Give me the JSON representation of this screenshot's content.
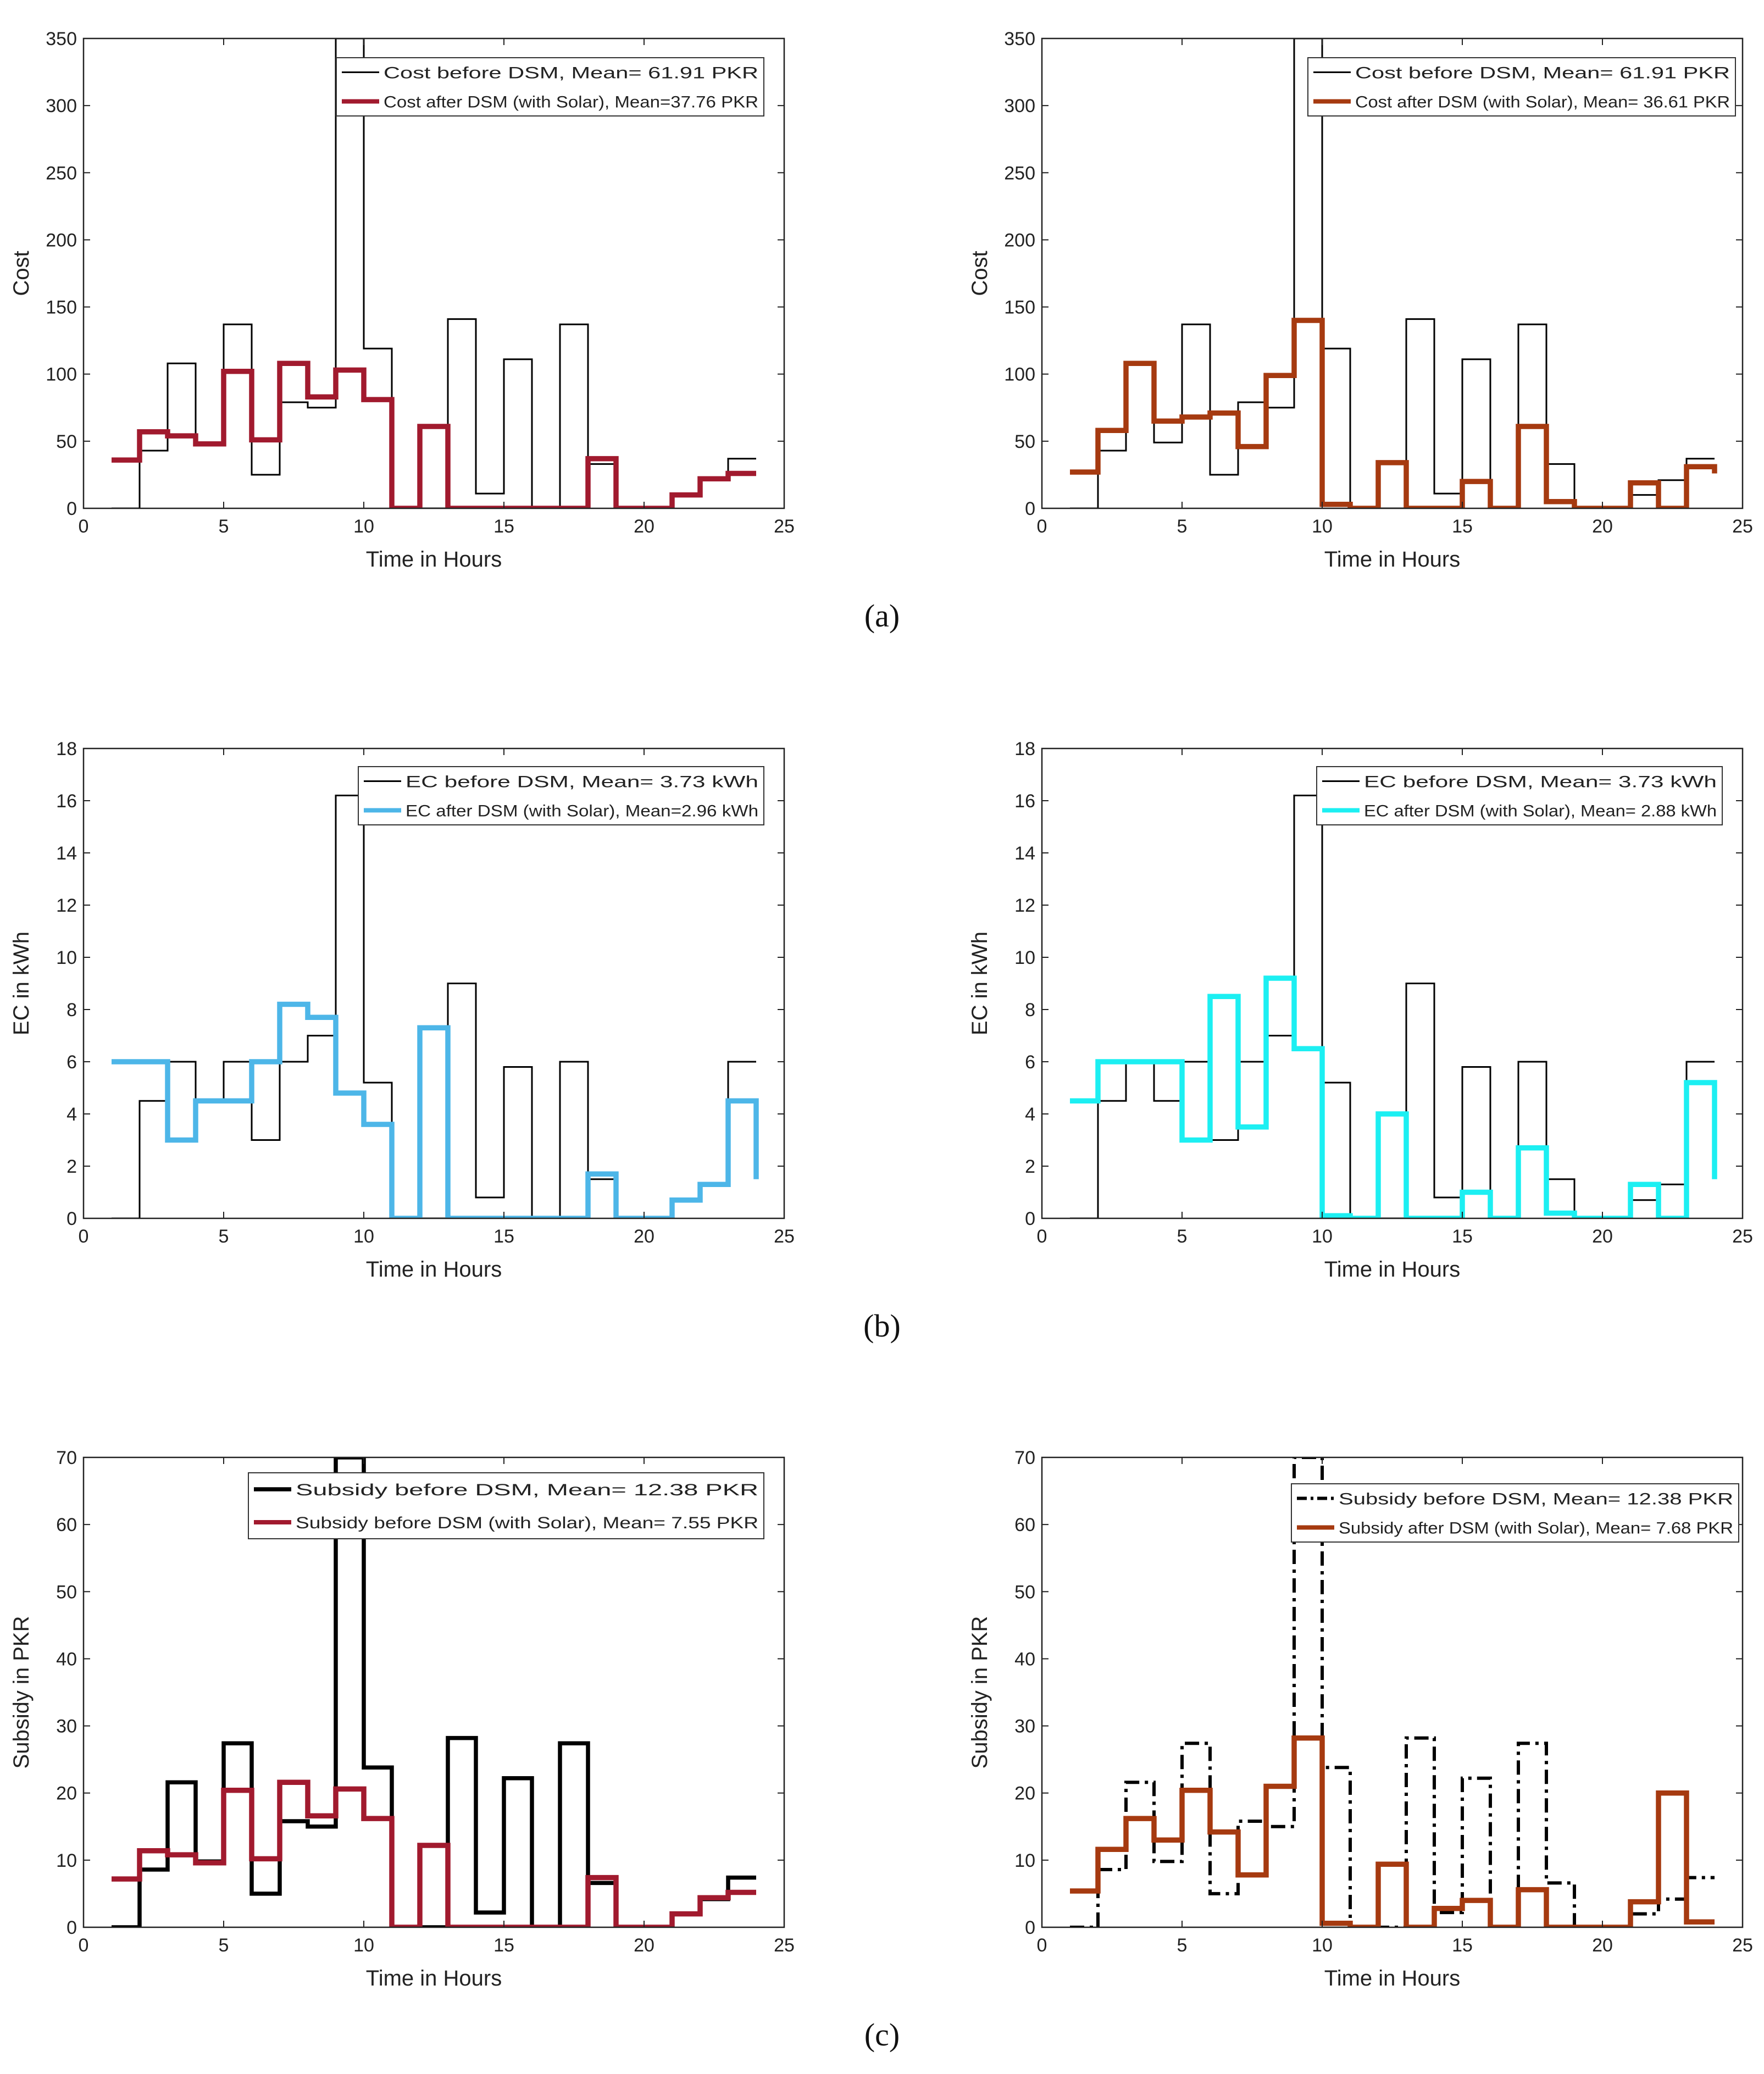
{
  "figure": {
    "panel_labels": [
      "(a)",
      "(b)",
      "(c)"
    ]
  },
  "chart_data": [
    {
      "type": "line",
      "title": "",
      "xlabel": "Time in Hours",
      "ylabel": "Cost",
      "xlim": [
        0,
        25
      ],
      "ylim": [
        0,
        350
      ],
      "xticks": [
        0,
        5,
        10,
        15,
        20,
        25
      ],
      "yticks": [
        0,
        50,
        100,
        150,
        200,
        250,
        300,
        350
      ],
      "legend_position": "top-right",
      "series": [
        {
          "name": "Cost before DSM, Mean= 61.91 PKR",
          "color": "#000000",
          "style": "thin",
          "x": [
            1,
            2,
            3,
            4,
            5,
            6,
            7,
            8,
            9,
            10,
            11,
            12,
            13,
            14,
            15,
            16,
            17,
            18,
            19,
            20,
            21,
            22,
            23,
            24
          ],
          "values": [
            0,
            43,
            108,
            49,
            137,
            25,
            79,
            75,
            350,
            119,
            0,
            0,
            141,
            11,
            111,
            0,
            137,
            33,
            0,
            0,
            10,
            21,
            37,
            37
          ]
        },
        {
          "name": "Cost after DSM (with Solar), Mean=37.76 PKR",
          "color": "#A11A2E",
          "style": "thick",
          "x": [
            1,
            2,
            3,
            4,
            5,
            6,
            7,
            8,
            9,
            10,
            11,
            12,
            13,
            14,
            15,
            16,
            17,
            18,
            19,
            20,
            21,
            22,
            23,
            24
          ],
          "values": [
            36,
            57,
            54,
            48,
            102,
            51,
            108,
            83,
            103,
            81,
            0,
            61,
            0,
            0,
            0,
            0,
            0,
            37,
            0,
            0,
            10,
            22,
            26,
            26
          ]
        }
      ]
    },
    {
      "type": "line",
      "title": "",
      "xlabel": "Time in Hours",
      "ylabel": "Cost",
      "xlim": [
        0,
        25
      ],
      "ylim": [
        0,
        350
      ],
      "xticks": [
        0,
        5,
        10,
        15,
        20,
        25
      ],
      "yticks": [
        0,
        50,
        100,
        150,
        200,
        250,
        300,
        350
      ],
      "legend_position": "top-right",
      "series": [
        {
          "name": "Cost before DSM, Mean= 61.91 PKR",
          "color": "#000000",
          "style": "thin",
          "x": [
            1,
            2,
            3,
            4,
            5,
            6,
            7,
            8,
            9,
            10,
            11,
            12,
            13,
            14,
            15,
            16,
            17,
            18,
            19,
            20,
            21,
            22,
            23,
            24
          ],
          "values": [
            0,
            43,
            108,
            49,
            137,
            25,
            79,
            75,
            350,
            119,
            0,
            0,
            141,
            11,
            111,
            0,
            137,
            33,
            0,
            0,
            10,
            21,
            37,
            37
          ]
        },
        {
          "name": "Cost after DSM (with Solar), Mean= 36.61 PKR",
          "color": "#A63A10",
          "style": "thick",
          "x": [
            1,
            2,
            3,
            4,
            5,
            6,
            7,
            8,
            9,
            10,
            11,
            12,
            13,
            14,
            15,
            16,
            17,
            18,
            19,
            20,
            21,
            22,
            23,
            24
          ],
          "values": [
            27,
            58,
            108,
            65,
            68,
            71,
            46,
            99,
            140,
            3,
            0,
            34,
            0,
            0,
            20,
            0,
            61,
            5,
            0,
            0,
            19,
            0,
            31,
            26
          ]
        }
      ]
    },
    {
      "type": "line",
      "title": "",
      "xlabel": "Time in Hours",
      "ylabel": "EC in kWh",
      "xlim": [
        0,
        25
      ],
      "ylim": [
        0,
        18
      ],
      "xticks": [
        0,
        5,
        10,
        15,
        20,
        25
      ],
      "yticks": [
        0,
        2,
        4,
        6,
        8,
        10,
        12,
        14,
        16,
        18
      ],
      "legend_position": "top-right",
      "series": [
        {
          "name": "EC before DSM, Mean= 3.73 kWh",
          "color": "#000000",
          "style": "thin",
          "x": [
            1,
            2,
            3,
            4,
            5,
            6,
            7,
            8,
            9,
            10,
            11,
            12,
            13,
            14,
            15,
            16,
            17,
            18,
            19,
            20,
            21,
            22,
            23,
            24
          ],
          "values": [
            0,
            4.5,
            6,
            4.5,
            6,
            3,
            6,
            7,
            16.2,
            5.2,
            0,
            0,
            9,
            0.8,
            5.8,
            0,
            6,
            1.5,
            0,
            0,
            0.7,
            1.3,
            6,
            6
          ]
        },
        {
          "name": "EC after DSM (with Solar), Mean=2.96 kWh",
          "color": "#4DB6E8",
          "style": "thick",
          "x": [
            1,
            2,
            3,
            4,
            5,
            6,
            7,
            8,
            9,
            10,
            11,
            12,
            13,
            14,
            15,
            16,
            17,
            18,
            19,
            20,
            21,
            22,
            23,
            24
          ],
          "values": [
            6,
            6,
            3,
            4.5,
            4.5,
            6,
            8.2,
            7.7,
            4.8,
            3.6,
            0,
            7.3,
            0,
            0,
            0,
            0,
            0,
            1.7,
            0,
            0,
            0.7,
            1.3,
            4.5,
            1.5
          ]
        }
      ]
    },
    {
      "type": "line",
      "title": "",
      "xlabel": "Time in Hours",
      "ylabel": "EC in kWh",
      "xlim": [
        0,
        25
      ],
      "ylim": [
        0,
        18
      ],
      "xticks": [
        0,
        5,
        10,
        15,
        20,
        25
      ],
      "yticks": [
        0,
        2,
        4,
        6,
        8,
        10,
        12,
        14,
        16,
        18
      ],
      "legend_position": "top-right",
      "series": [
        {
          "name": "EC before DSM, Mean= 3.73 kWh",
          "color": "#000000",
          "style": "thin",
          "x": [
            1,
            2,
            3,
            4,
            5,
            6,
            7,
            8,
            9,
            10,
            11,
            12,
            13,
            14,
            15,
            16,
            17,
            18,
            19,
            20,
            21,
            22,
            23,
            24
          ],
          "values": [
            0,
            4.5,
            6,
            4.5,
            6,
            3,
            6,
            7,
            16.2,
            5.2,
            0,
            0,
            9,
            0.8,
            5.8,
            0,
            6,
            1.5,
            0,
            0,
            0.7,
            1.3,
            6,
            6
          ]
        },
        {
          "name": "EC after DSM (with Solar), Mean= 2.88 kWh",
          "color": "#1CEFF2",
          "style": "thick",
          "x": [
            1,
            2,
            3,
            4,
            5,
            6,
            7,
            8,
            9,
            10,
            11,
            12,
            13,
            14,
            15,
            16,
            17,
            18,
            19,
            20,
            21,
            22,
            23,
            24
          ],
          "values": [
            4.5,
            6,
            6,
            6,
            3,
            8.5,
            3.5,
            9.2,
            6.5,
            0.1,
            0,
            4,
            0,
            0,
            1,
            0,
            2.7,
            0.2,
            0,
            0,
            1.3,
            0,
            5.2,
            1.5
          ]
        }
      ]
    },
    {
      "type": "line",
      "title": "",
      "xlabel": "Time in Hours",
      "ylabel": "Subsidy in PKR",
      "xlim": [
        0,
        25
      ],
      "ylim": [
        0,
        70
      ],
      "xticks": [
        0,
        5,
        10,
        15,
        20,
        25
      ],
      "yticks": [
        0,
        10,
        20,
        30,
        40,
        50,
        60,
        70
      ],
      "legend_position": "top-right",
      "series": [
        {
          "name": "Subsidy before DSM, Mean= 12.38 PKR",
          "color": "#000000",
          "style": "thick-black",
          "x": [
            1,
            2,
            3,
            4,
            5,
            6,
            7,
            8,
            9,
            10,
            11,
            12,
            13,
            14,
            15,
            16,
            17,
            18,
            19,
            20,
            21,
            22,
            23,
            24
          ],
          "values": [
            0,
            8.6,
            21.6,
            9.8,
            27.4,
            5,
            15.8,
            15,
            70,
            23.8,
            0,
            0,
            28.2,
            2.2,
            22.2,
            0,
            27.4,
            6.6,
            0,
            0,
            2,
            4.2,
            7.4,
            7.4
          ]
        },
        {
          "name": "Subsidy before DSM (with Solar), Mean= 7.55 PKR",
          "color": "#A11A2E",
          "style": "thick",
          "x": [
            1,
            2,
            3,
            4,
            5,
            6,
            7,
            8,
            9,
            10,
            11,
            12,
            13,
            14,
            15,
            16,
            17,
            18,
            19,
            20,
            21,
            22,
            23,
            24
          ],
          "values": [
            7.2,
            11.4,
            10.8,
            9.6,
            20.4,
            10.2,
            21.6,
            16.6,
            20.6,
            16.2,
            0,
            12.2,
            0,
            0,
            0,
            0,
            0,
            7.4,
            0,
            0,
            2,
            4.4,
            5.2,
            5.2
          ]
        }
      ]
    },
    {
      "type": "line",
      "title": "",
      "xlabel": "Time in Hours",
      "ylabel": "Subsidy in PKR",
      "xlim": [
        0,
        25
      ],
      "ylim": [
        0,
        70
      ],
      "xticks": [
        0,
        5,
        10,
        15,
        20,
        25
      ],
      "yticks": [
        0,
        10,
        20,
        30,
        40,
        50,
        60,
        70
      ],
      "legend_position": "top-right",
      "series": [
        {
          "name": "Subsidy before DSM, Mean= 12.38 PKR",
          "color": "#000000",
          "style": "dashdot",
          "x": [
            1,
            2,
            3,
            4,
            5,
            6,
            7,
            8,
            9,
            10,
            11,
            12,
            13,
            14,
            15,
            16,
            17,
            18,
            19,
            20,
            21,
            22,
            23,
            24
          ],
          "values": [
            0,
            8.6,
            21.6,
            9.8,
            27.4,
            5,
            15.8,
            15,
            70,
            23.8,
            0,
            0,
            28.2,
            2.2,
            22.2,
            0,
            27.4,
            6.6,
            0,
            0,
            2,
            4.2,
            7.4,
            7.4
          ]
        },
        {
          "name": "Subsidy after DSM (with Solar), Mean= 7.68 PKR",
          "color": "#A63A10",
          "style": "thick",
          "x": [
            1,
            2,
            3,
            4,
            5,
            6,
            7,
            8,
            9,
            10,
            11,
            12,
            13,
            14,
            15,
            16,
            17,
            18,
            19,
            20,
            21,
            22,
            23,
            24
          ],
          "values": [
            5.4,
            11.6,
            16.2,
            13,
            20.4,
            14.2,
            7.8,
            21,
            28.2,
            0.6,
            0,
            9.4,
            0,
            2.8,
            4,
            0,
            5.6,
            0,
            0,
            0,
            3.8,
            20,
            0.8,
            0.8
          ]
        }
      ]
    }
  ]
}
